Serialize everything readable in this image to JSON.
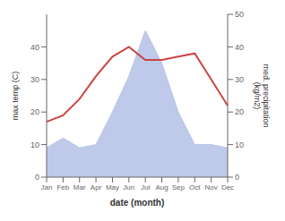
{
  "chart_data": {
    "type": "line",
    "categories": [
      "Jan",
      "Feb",
      "Mar",
      "Apr",
      "May",
      "Jun",
      "Jul",
      "Aug",
      "Sep",
      "Oct",
      "Nov",
      "Dec"
    ],
    "series": [
      {
        "type": "area",
        "axis": "y2",
        "color": "#b8c4e8",
        "values": [
          9,
          12,
          9,
          10,
          20,
          31,
          45,
          35,
          20,
          10,
          10,
          9
        ]
      },
      {
        "type": "line",
        "color": "#cc4444",
        "values": [
          17,
          19,
          24,
          31,
          37,
          40,
          36,
          36,
          37,
          38,
          30,
          22
        ]
      }
    ],
    "xlabel": "date (month)",
    "ylabel": "max temp (C)",
    "y2label": "med. precipitation\n(kg/m2)",
    "ylim": [
      0,
      50
    ],
    "yticks": [
      0,
      10,
      20,
      30,
      40
    ],
    "y2lim": [
      0,
      50
    ],
    "y2ticks": [
      0,
      10,
      20,
      30,
      40,
      50
    ]
  }
}
